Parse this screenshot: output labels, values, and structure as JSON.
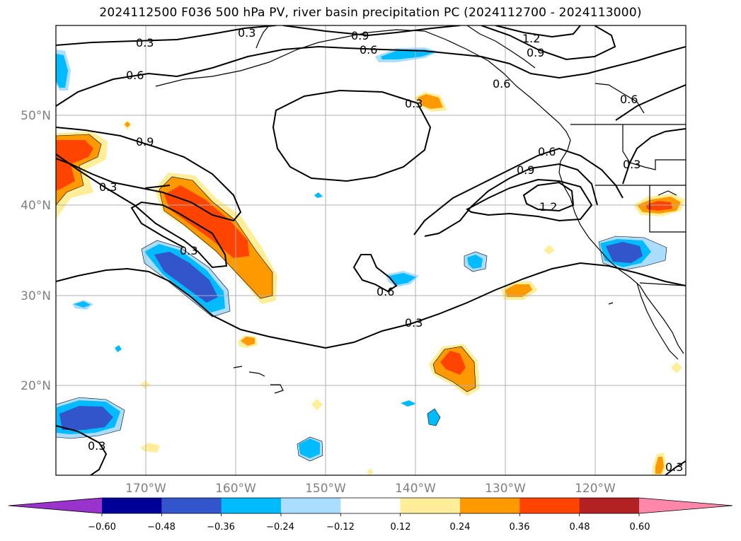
{
  "title": "2024112500 F036 500 hPa PV, river basin precipitation PC (2024112700 - 2024113000)",
  "map": {
    "lon_range": [
      -180,
      -110
    ],
    "lat_range": [
      10,
      60
    ],
    "lon_ticks": [
      {
        "value": -170,
        "label": "170°W"
      },
      {
        "value": -160,
        "label": "160°W"
      },
      {
        "value": -150,
        "label": "150°W"
      },
      {
        "value": -140,
        "label": "140°W"
      },
      {
        "value": -130,
        "label": "130°W"
      },
      {
        "value": -120,
        "label": "120°W"
      }
    ],
    "lat_ticks": [
      {
        "value": 20,
        "label": "20°N"
      },
      {
        "value": 30,
        "label": "30°N"
      },
      {
        "value": 40,
        "label": "40°N"
      },
      {
        "value": 50,
        "label": "50°N"
      }
    ],
    "grid": true
  },
  "colorbar": {
    "orientation": "horizontal",
    "extend": "both",
    "colors": [
      "#9933cc",
      "#000099",
      "#3355cc",
      "#00bbff",
      "#aaddff",
      "#ffffff",
      "#ffee99",
      "#ff9900",
      "#ff4400",
      "#b22222",
      "#ff88aa"
    ],
    "tick_labels": [
      "−0.60",
      "−0.48",
      "−0.36",
      "−0.24",
      "−0.12",
      "0.12",
      "0.24",
      "0.36",
      "0.48",
      "0.60"
    ]
  },
  "contour_labels": [
    "0.3",
    "0.6",
    "0.9",
    "1.2",
    "0.6",
    "0.9",
    "0.6",
    "0.9",
    "0.3",
    "0.3",
    "0.3",
    "0.6",
    "0.9",
    "1.2",
    "0.3",
    "0.6",
    "0.3",
    "0.3",
    "0.6",
    "0.3",
    "0.3"
  ]
}
